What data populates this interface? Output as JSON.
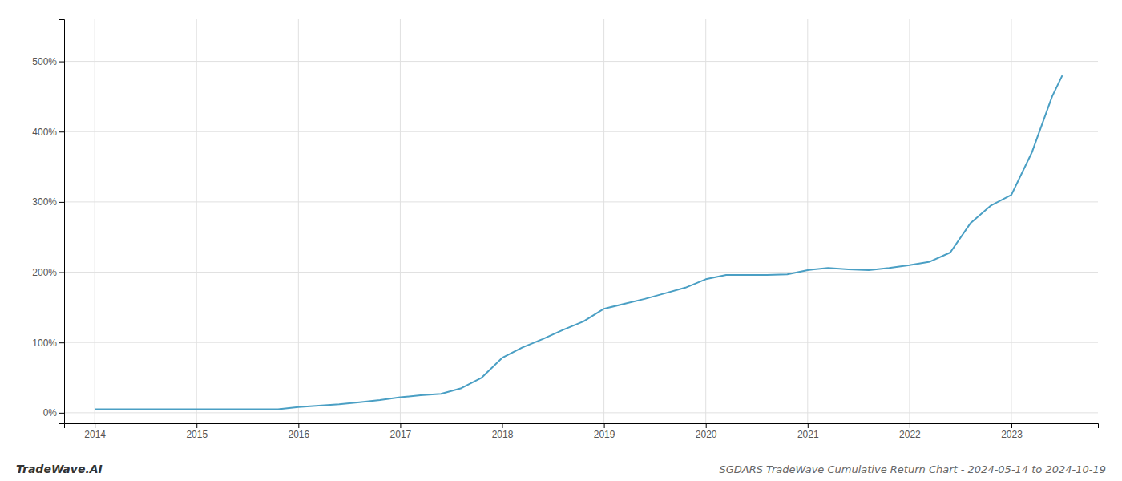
{
  "chart_data": {
    "type": "line",
    "title": "SGDARS TradeWave Cumulative Return Chart - 2024-05-14 to 2024-10-19",
    "annotations": [
      "TradeWave.AI"
    ],
    "x": [
      2014.0,
      2014.2,
      2014.4,
      2014.6,
      2014.8,
      2015.0,
      2015.2,
      2015.4,
      2015.6,
      2015.8,
      2016.0,
      2016.2,
      2016.4,
      2016.6,
      2016.8,
      2017.0,
      2017.2,
      2017.4,
      2017.6,
      2017.8,
      2018.0,
      2018.2,
      2018.4,
      2018.6,
      2018.8,
      2019.0,
      2019.2,
      2019.4,
      2019.6,
      2019.8,
      2020.0,
      2020.2,
      2020.4,
      2020.6,
      2020.8,
      2021.0,
      2021.2,
      2021.4,
      2021.6,
      2021.8,
      2022.0,
      2022.2,
      2022.4,
      2022.6,
      2022.8,
      2023.0,
      2023.2,
      2023.4,
      2023.5
    ],
    "values": [
      5,
      5,
      5,
      5,
      5,
      5,
      5,
      5,
      5,
      5,
      8,
      10,
      12,
      15,
      18,
      22,
      25,
      27,
      35,
      50,
      78,
      93,
      105,
      118,
      130,
      148,
      155,
      162,
      170,
      178,
      190,
      196,
      196,
      196,
      197,
      203,
      206,
      204,
      203,
      206,
      210,
      215,
      228,
      270,
      295,
      310,
      370,
      450,
      480
    ],
    "color": "#4a9fc4",
    "xlim": [
      2013.7,
      2023.85
    ],
    "ylim": [
      -15,
      560
    ],
    "xticks": [
      2014,
      2015,
      2016,
      2017,
      2018,
      2019,
      2020,
      2021,
      2022,
      2023
    ],
    "yticks": [
      {
        "value": 0,
        "label": "0%"
      },
      {
        "value": 100,
        "label": "100%"
      },
      {
        "value": 200,
        "label": "200%"
      },
      {
        "value": 300,
        "label": "300%"
      },
      {
        "value": 400,
        "label": "400%"
      },
      {
        "value": 500,
        "label": "500%"
      }
    ],
    "grid": true
  }
}
